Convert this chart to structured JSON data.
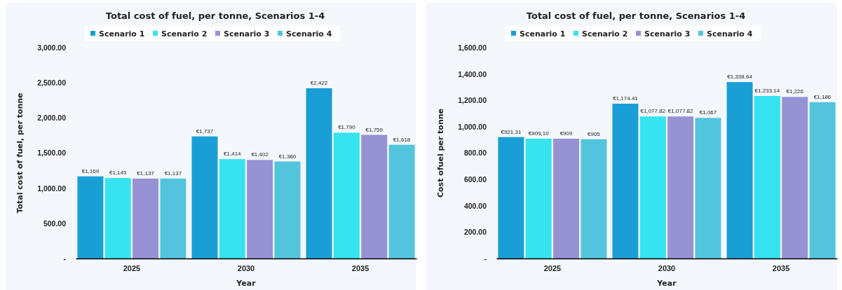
{
  "chart_data": [
    {
      "type": "bar",
      "title": "Total cost of fuel, per tonne, Scenarios 1-4",
      "xlabel": "Year",
      "ylabel": "Total cost  of fuel, per tonne",
      "categories": [
        "2025",
        "2030",
        "2035"
      ],
      "legend": "top",
      "ylim": [
        0,
        3000
      ],
      "yticks": [
        {
          "value": 0,
          "label": "-"
        },
        {
          "value": 500,
          "label": "500.00"
        },
        {
          "value": 1000,
          "label": "1,000.00"
        },
        {
          "value": 1500,
          "label": "1,500.00"
        },
        {
          "value": 2000,
          "label": "2,000.00"
        },
        {
          "value": 2500,
          "label": "2,500.00"
        },
        {
          "value": 3000,
          "label": "3,000.00"
        }
      ],
      "series": [
        {
          "name": "Scenario 1",
          "color": "#1a9ed6",
          "values": [
            1169,
            1737,
            2422
          ],
          "value_labels": [
            "€1,169",
            "€1,737",
            "€2,422"
          ]
        },
        {
          "name": "Scenario 2",
          "color": "#36e3f0",
          "values": [
            1145,
            1414,
            1790
          ],
          "value_labels": [
            "€1,145",
            "€1,414",
            "€1,790"
          ]
        },
        {
          "name": "Scenario 3",
          "color": "#9692d4",
          "values": [
            1137,
            1402,
            1759
          ],
          "value_labels": [
            "€1,137",
            "€1,402",
            "€1,759"
          ]
        },
        {
          "name": "Scenario 4",
          "color": "#52c5dc",
          "values": [
            1137,
            1380,
            1618
          ],
          "value_labels": [
            "€1,137",
            "€1,380",
            "€1,618"
          ]
        }
      ]
    },
    {
      "type": "bar",
      "title": "Total cost of fuel, per tonne, Scenarios 1-4",
      "xlabel": "Year",
      "ylabel": "Cost ofuel per tonne",
      "categories": [
        "2025",
        "2030",
        "2035"
      ],
      "legend": "top",
      "ylim": [
        0,
        1600
      ],
      "yticks": [
        {
          "value": 0,
          "label": "-"
        },
        {
          "value": 200,
          "label": "200.00"
        },
        {
          "value": 400,
          "label": "400.00"
        },
        {
          "value": 600,
          "label": "600.00"
        },
        {
          "value": 800,
          "label": "800.00"
        },
        {
          "value": 1000,
          "label": "1,000.00"
        },
        {
          "value": 1200,
          "label": "1,200.00"
        },
        {
          "value": 1400,
          "label": "1,400.00"
        },
        {
          "value": 1600,
          "label": "1,600.00"
        }
      ],
      "series": [
        {
          "name": "Scenario 1",
          "color": "#1a9ed6",
          "values": [
            921.31,
            1174.41,
            1338.64
          ],
          "value_labels": [
            "€921.31",
            "€1,174.41",
            "€1,338.64"
          ]
        },
        {
          "name": "Scenario 2",
          "color": "#36e3f0",
          "values": [
            909.1,
            1077.82,
            1233.14
          ],
          "value_labels": [
            "€909,10",
            "€1,077.82",
            "€1,233.14"
          ]
        },
        {
          "name": "Scenario 3",
          "color": "#9692d4",
          "values": [
            909,
            1077.82,
            1226
          ],
          "value_labels": [
            "€909",
            "€1,077.82",
            "€1,226"
          ]
        },
        {
          "name": "Scenario 4",
          "color": "#52c5dc",
          "values": [
            905,
            1067,
            1186
          ],
          "value_labels": [
            "€905",
            "€1,067",
            "€1,186"
          ]
        }
      ]
    }
  ]
}
